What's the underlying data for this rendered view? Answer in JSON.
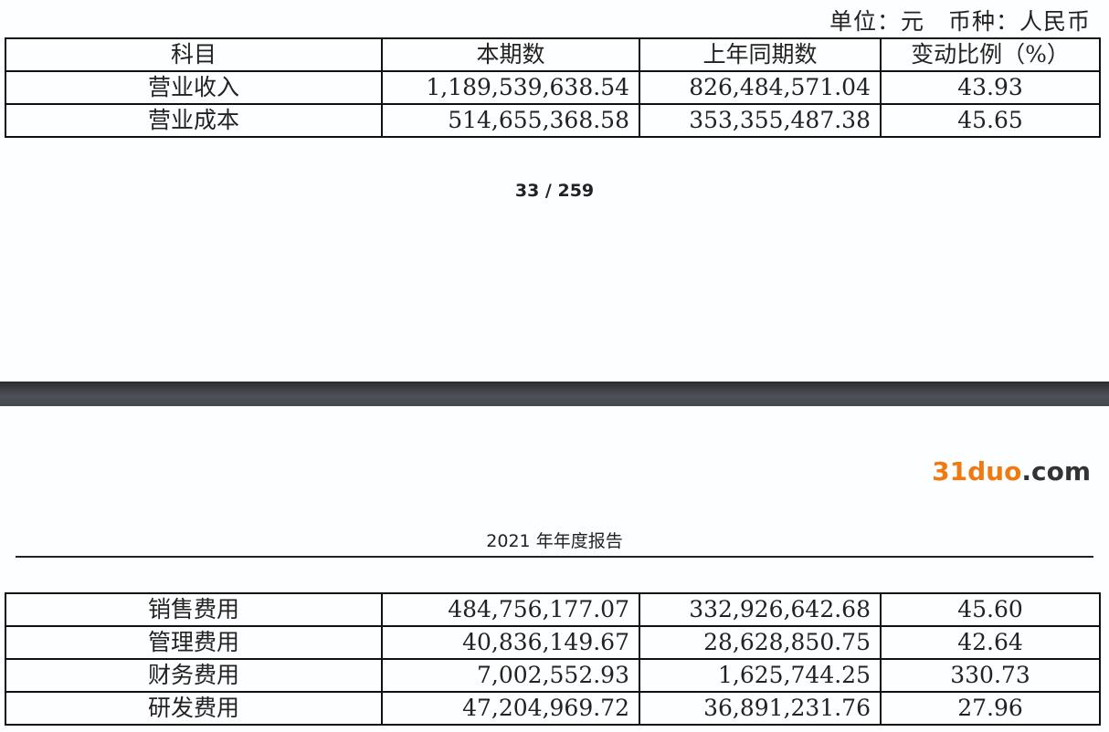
{
  "unit_line": "单位：元　币种：人民币",
  "columns": [
    "科目",
    "本期数",
    "上年同期数",
    "变动比例（%）"
  ],
  "rows_top": [
    [
      "营业收入",
      "1,189,539,638.54",
      "826,484,571.04",
      "43.93"
    ],
    [
      "营业成本",
      "514,655,368.58",
      "353,355,487.38",
      "45.65"
    ]
  ],
  "page_number": "33 / 259",
  "page_header": "2021 年年度报告",
  "rows_bottom": [
    [
      "销售费用",
      "484,756,177.07",
      "332,926,642.68",
      "45.60"
    ],
    [
      "管理费用",
      "40,836,149.67",
      "28,628,850.75",
      "42.64"
    ],
    [
      "财务费用",
      "7,002,552.93",
      "1,625,744.25",
      "330.73"
    ],
    [
      "研发费用",
      "47,204,969.72",
      "36,891,231.76",
      "27.96"
    ]
  ],
  "watermark": {
    "part1": "31duo",
    "part2": ".com"
  }
}
